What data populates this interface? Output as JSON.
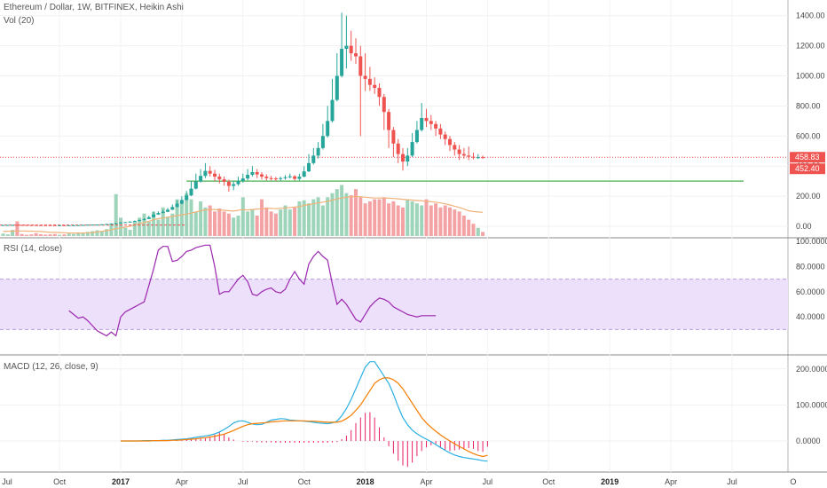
{
  "header": {
    "main_title": "Ethereum / Dollar, 1W, BITFINEX, Heikin Ashi",
    "volume_label": "Vol (20)",
    "rsi_label": "RSI (14, close)",
    "macd_label": "MACD (12, 26, close, 9)"
  },
  "colors": {
    "up": "#26a69a",
    "down": "#ef5350",
    "volume_up": "#9ed4b9",
    "volume_down": "#f4a3a5",
    "ma": "#f0b27a",
    "rsi_line": "#9c27b0",
    "rsi_band": "#ede0fb",
    "macd_line": "#2ab0e3",
    "signal_line": "#f57c00",
    "histogram": "#e91e63",
    "support_line": "#4caf50",
    "price_line": "#ef5350"
  },
  "chart_data": [
    {
      "type": "candlestick",
      "title": "Ethereum / Dollar, 1W, BITFINEX, Heikin Ashi",
      "ylim": [
        -40,
        1440
      ],
      "y_ticks": [
        "0.00",
        "200.00",
        "400.00",
        "600.00",
        "800.00",
        "1000.00",
        "1200.00",
        "1400.00"
      ],
      "price_labels": [
        "458.83",
        "452.40"
      ],
      "last_price": 458.83,
      "support_level": 300,
      "ohlc": [
        [
          8.4,
          8.7,
          8.1,
          8.5
        ],
        [
          8.5,
          9.1,
          8.2,
          8.8
        ],
        [
          8.8,
          9.3,
          8.6,
          9.0
        ],
        [
          9.0,
          9.2,
          8.5,
          8.7
        ],
        [
          8.7,
          8.9,
          8.3,
          8.5
        ],
        [
          8.5,
          8.7,
          8.0,
          8.2
        ],
        [
          8.2,
          8.4,
          7.9,
          8.1
        ],
        [
          8.1,
          8.3,
          7.7,
          7.9
        ],
        [
          7.9,
          8.1,
          7.5,
          7.7
        ],
        [
          7.7,
          7.9,
          7.3,
          7.5
        ],
        [
          7.5,
          7.6,
          7.0,
          7.2
        ],
        [
          7.2,
          7.4,
          6.9,
          7.1
        ],
        [
          7.1,
          7.3,
          6.9,
          7.1
        ],
        [
          7.1,
          7.3,
          6.8,
          7.0
        ],
        [
          7.0,
          7.2,
          6.8,
          7.0
        ],
        [
          7.0,
          7.4,
          6.9,
          7.3
        ],
        [
          7.3,
          8.0,
          7.2,
          7.8
        ],
        [
          7.8,
          9.4,
          7.7,
          9.0
        ],
        [
          9.0,
          10.8,
          8.9,
          10.3
        ],
        [
          10.3,
          11.5,
          10.0,
          11.1
        ],
        [
          11.1,
          12.0,
          10.9,
          11.6
        ],
        [
          11.6,
          13.5,
          11.4,
          12.8
        ],
        [
          12.8,
          16.4,
          12.6,
          15.0
        ],
        [
          15.0,
          19.5,
          14.8,
          17.8
        ],
        [
          17.8,
          23.2,
          17.5,
          21.0
        ],
        [
          21.0,
          27.0,
          20.8,
          24.5
        ],
        [
          24.5,
          29.5,
          24.0,
          27.5
        ],
        [
          27.5,
          33.0,
          27.0,
          30.6
        ],
        [
          30.6,
          39.0,
          30.4,
          34.8
        ],
        [
          34.8,
          45.0,
          34.5,
          40.5
        ],
        [
          40.5,
          54.0,
          40.2,
          48.0
        ],
        [
          48.0,
          70.0,
          47.0,
          60.0
        ],
        [
          60.0,
          96.0,
          59.0,
          78.0
        ],
        [
          78.0,
          100.0,
          75.0,
          88.0
        ],
        [
          88.0,
          110.0,
          86.0,
          96.0
        ],
        [
          96.0,
          122.0,
          94.0,
          110.0
        ],
        [
          110.0,
          145.0,
          108.0,
          128.0
        ],
        [
          128.0,
          172.0,
          126.0,
          150.0
        ],
        [
          150.0,
          200.0,
          146.0,
          175.0
        ],
        [
          175.0,
          235.0,
          170.0,
          205.0
        ],
        [
          205.0,
          300.0,
          200.0,
          250.0
        ],
        [
          250.0,
          350.0,
          245.0,
          298.0
        ],
        [
          298.0,
          380.0,
          290.0,
          335.0
        ],
        [
          335.0,
          420.0,
          320.0,
          368.0
        ],
        [
          368.0,
          400.0,
          330.0,
          350.0
        ],
        [
          350.0,
          375.0,
          300.0,
          330.0
        ],
        [
          330.0,
          350.0,
          285.0,
          312.0
        ],
        [
          312.0,
          330.0,
          270.0,
          296.0
        ],
        [
          296.0,
          310.0,
          230.0,
          268.0
        ],
        [
          268.0,
          300.0,
          240.0,
          280.0
        ],
        [
          280.0,
          330.0,
          270.0,
          300.0
        ],
        [
          300.0,
          350.0,
          290.0,
          318.0
        ],
        [
          318.0,
          380.0,
          305.0,
          342.0
        ],
        [
          342.0,
          400.0,
          330.0,
          360.0
        ],
        [
          360.0,
          380.0,
          320.0,
          345.0
        ],
        [
          345.0,
          360.0,
          310.0,
          330.0
        ],
        [
          330.0,
          345.0,
          305.0,
          320.0
        ],
        [
          320.0,
          335.0,
          305.0,
          318.0
        ],
        [
          318.0,
          328.0,
          300.0,
          316.0
        ],
        [
          316.0,
          330.0,
          303.0,
          320.0
        ],
        [
          320.0,
          340.0,
          310.0,
          326.0
        ],
        [
          326.0,
          350.0,
          318.0,
          332.0
        ],
        [
          332.0,
          340.0,
          305.0,
          315.0
        ],
        [
          315.0,
          350.0,
          305.0,
          330.0
        ],
        [
          330.0,
          400.0,
          325.0,
          365.0
        ],
        [
          365.0,
          480.0,
          360.0,
          420.0
        ],
        [
          420.0,
          520.0,
          410.0,
          470.0
        ],
        [
          470.0,
          560.0,
          450.0,
          520.0
        ],
        [
          520.0,
          680.0,
          510.0,
          600.0
        ],
        [
          600.0,
          800.0,
          590.0,
          700.0
        ],
        [
          700.0,
          980.0,
          690.0,
          840.0
        ],
        [
          840.0,
          1150.0,
          830.0,
          1000.0
        ],
        [
          1000.0,
          1420.0,
          990.0,
          1180.0
        ],
        [
          1180.0,
          1400.0,
          1050.0,
          1200.0
        ],
        [
          1200.0,
          1300.0,
          1100.0,
          1150.0
        ],
        [
          1150.0,
          1250.0,
          1080.0,
          1130.0
        ],
        [
          1130.0,
          1200.0,
          600.0,
          1000.0
        ],
        [
          1000.0,
          1150.0,
          900.0,
          980.0
        ],
        [
          980.0,
          1060.0,
          900.0,
          940.0
        ],
        [
          940.0,
          990.0,
          880.0,
          920.0
        ],
        [
          920.0,
          950.0,
          800.0,
          860.0
        ],
        [
          860.0,
          880.0,
          640.0,
          760.0
        ],
        [
          760.0,
          780.0,
          520.0,
          640.0
        ],
        [
          640.0,
          660.0,
          460.0,
          550.0
        ],
        [
          550.0,
          580.0,
          420.0,
          480.0
        ],
        [
          480.0,
          520.0,
          370.0,
          430.0
        ],
        [
          430.0,
          520.0,
          400.0,
          470.0
        ],
        [
          470.0,
          620.0,
          460.0,
          560.0
        ],
        [
          560.0,
          700.0,
          550.0,
          640.0
        ],
        [
          640.0,
          820.0,
          630.0,
          720.0
        ],
        [
          720.0,
          780.0,
          660.0,
          700.0
        ],
        [
          700.0,
          740.0,
          640.0,
          680.0
        ],
        [
          680.0,
          700.0,
          600.0,
          650.0
        ],
        [
          650.0,
          680.0,
          580.0,
          610.0
        ],
        [
          610.0,
          630.0,
          540.0,
          580.0
        ],
        [
          580.0,
          600.0,
          500.0,
          540.0
        ],
        [
          540.0,
          560.0,
          470.0,
          510.0
        ],
        [
          510.0,
          540.0,
          440.0,
          480.0
        ],
        [
          480.0,
          520.0,
          450.0,
          470.0
        ],
        [
          470.0,
          530.0,
          440.0,
          462.0
        ],
        [
          462.0,
          490.0,
          445.0,
          458.0
        ],
        [
          458.0,
          480.0,
          447.0,
          459.0
        ],
        [
          459.0,
          470.0,
          450.0,
          458.83
        ]
      ],
      "volume": [
        12,
        8,
        30,
        72,
        10,
        6,
        8,
        14,
        9,
        7,
        8,
        10,
        6,
        8,
        12,
        10,
        14,
        16,
        20,
        24,
        28,
        22,
        34,
        60,
        205,
        90,
        40,
        30,
        70,
        90,
        110,
        70,
        120,
        80,
        140,
        95,
        110,
        180,
        160,
        210,
        180,
        120,
        170,
        140,
        150,
        120,
        135,
        120,
        110,
        90,
        100,
        190,
        120,
        130,
        100,
        180,
        140,
        120,
        110,
        130,
        150,
        130,
        140,
        170,
        175,
        160,
        180,
        190,
        150,
        190,
        210,
        230,
        250,
        210,
        200,
        230,
        190,
        160,
        170,
        180,
        180,
        190,
        160,
        170,
        150,
        140,
        180,
        170,
        160,
        150,
        180,
        150,
        160,
        140,
        150,
        140,
        130,
        120,
        100,
        80,
        60,
        40,
        20
      ],
      "volume_ma": [
        22,
        23,
        24,
        25,
        25,
        24,
        24,
        23,
        22,
        20,
        18,
        18,
        17,
        16,
        15,
        15,
        15,
        15,
        16,
        17,
        20,
        23,
        26,
        30,
        36,
        40,
        44,
        48,
        55,
        60,
        66,
        72,
        80,
        85,
        88,
        92,
        96,
        100,
        104,
        108,
        112,
        118,
        124,
        128,
        130,
        130,
        128,
        126,
        124,
        122,
        126,
        130,
        128,
        130,
        132,
        134,
        136,
        135,
        134,
        136,
        138,
        140,
        142,
        144,
        150,
        154,
        158,
        162,
        166,
        170,
        176,
        182,
        186,
        190,
        192,
        194,
        192,
        190,
        188,
        186,
        186,
        186,
        185,
        184,
        182,
        180,
        178,
        176,
        174,
        172,
        170,
        168,
        166,
        162,
        158,
        152,
        146,
        140,
        132,
        124,
        120,
        118,
        116
      ]
    },
    {
      "type": "line",
      "title": "RSI (14, close)",
      "ylim": [
        21,
        101
      ],
      "y_ticks": [
        "100.0000",
        "80.0000",
        "60.0000",
        "40.0000"
      ],
      "band": [
        30,
        70
      ],
      "start_index": 14,
      "values": [
        45,
        42,
        39,
        40,
        37,
        33,
        29,
        27,
        25,
        28,
        25,
        40,
        44,
        46,
        48,
        50,
        52,
        65,
        78,
        93,
        96,
        96,
        84,
        85,
        88,
        92,
        93,
        95,
        96,
        97,
        97,
        80,
        58,
        60,
        60,
        65,
        70,
        73,
        68,
        58,
        57,
        60,
        62,
        63,
        60,
        59,
        62,
        70,
        76,
        70,
        66,
        82,
        88,
        92,
        88,
        85,
        66,
        50,
        54,
        50,
        44,
        38,
        36,
        42,
        48,
        52,
        55,
        54,
        52,
        48,
        46,
        44,
        42,
        41,
        40,
        41,
        41,
        41,
        41
      ]
    },
    {
      "type": "line",
      "title": "MACD (12, 26, close, 9)",
      "ylim": [
        -90,
        230
      ],
      "y_ticks": [
        "200.0000",
        "100.0000",
        "0.0000"
      ],
      "start_index": 25,
      "macd": [
        0,
        0,
        0,
        0,
        0,
        1,
        1,
        1,
        1,
        2,
        2,
        3,
        4,
        5,
        6,
        8,
        10,
        12,
        14,
        16,
        20,
        25,
        32,
        40,
        50,
        55,
        56,
        52,
        47,
        45,
        46,
        52,
        58,
        60,
        62,
        61,
        58,
        57,
        56,
        55,
        54,
        52,
        50,
        49,
        48,
        50,
        55,
        70,
        90,
        115,
        145,
        175,
        205,
        220,
        220,
        200,
        180,
        160,
        130,
        95,
        65,
        45,
        30,
        20,
        12,
        5,
        -2,
        -10,
        -18,
        -26,
        -33,
        -39,
        -43,
        -46,
        -48,
        -50,
        -52,
        -55,
        -56
      ],
      "signal": [
        0,
        0,
        0,
        0,
        0,
        0,
        0,
        1,
        1,
        1,
        1,
        2,
        2,
        3,
        4,
        5,
        6,
        8,
        9,
        11,
        13,
        16,
        19,
        24,
        29,
        35,
        41,
        45,
        48,
        49,
        50,
        51,
        53,
        54,
        55,
        56,
        56,
        56,
        56,
        56,
        55,
        55,
        54,
        53,
        52,
        52,
        52,
        55,
        62,
        71,
        85,
        100,
        120,
        140,
        160,
        170,
        175,
        175,
        170,
        160,
        145,
        125,
        105,
        85,
        65,
        50,
        38,
        27,
        17,
        8,
        0,
        -8,
        -15,
        -22,
        -29,
        -35,
        -40,
        -43,
        -40
      ],
      "histogram": [
        0,
        0,
        0,
        0,
        0,
        0,
        0,
        0,
        0,
        0,
        0,
        0,
        1,
        2,
        3,
        4,
        5,
        6,
        8,
        12,
        18,
        24,
        20,
        10,
        4,
        0,
        -2,
        -3,
        -2,
        -4,
        -4,
        -4,
        -4,
        -5,
        -5,
        -5,
        -5,
        -5,
        -5,
        -5,
        -5,
        -5,
        -5,
        -5,
        -5,
        -4,
        -3,
        5,
        15,
        30,
        50,
        65,
        78,
        80,
        65,
        38,
        10,
        -15,
        -35,
        -55,
        -68,
        -72,
        -60,
        -42,
        -28,
        -18,
        -12,
        -8,
        -20,
        -25,
        -28,
        -26,
        -24,
        -22,
        -20,
        -22,
        -28,
        -30,
        -16
      ]
    }
  ],
  "x_axis": {
    "labels": [
      {
        "text": "Jul",
        "i": -1,
        "bold": false
      },
      {
        "text": "Oct",
        "i": 12,
        "bold": false
      },
      {
        "text": "2017",
        "i": 25,
        "bold": true
      },
      {
        "text": "Apr",
        "i": 38,
        "bold": false
      },
      {
        "text": "Jul",
        "i": 51,
        "bold": false
      },
      {
        "text": "Oct",
        "i": 64,
        "bold": false
      },
      {
        "text": "2018",
        "i": 77,
        "bold": true
      },
      {
        "text": "Apr",
        "i": 90,
        "bold": false
      },
      {
        "text": "Jul",
        "i": 103,
        "bold": false
      },
      {
        "text": "Oct",
        "i": 116,
        "bold": false
      },
      {
        "text": "2019",
        "i": 129,
        "bold": true
      },
      {
        "text": "Apr",
        "i": 142,
        "bold": false
      },
      {
        "text": "Jul",
        "i": 155,
        "bold": false
      },
      {
        "text": "O",
        "i": 168,
        "bold": false
      }
    ]
  }
}
